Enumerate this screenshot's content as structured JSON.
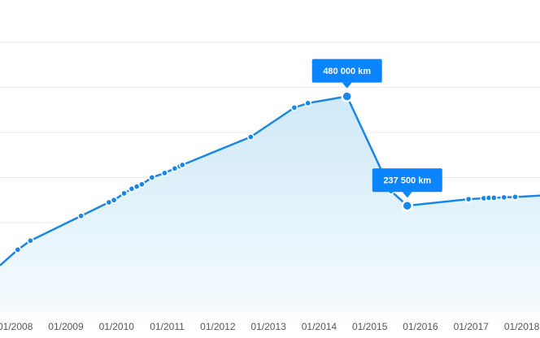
{
  "chart_data": {
    "type": "area",
    "title": "",
    "xlabel": "",
    "ylabel": "",
    "grid": true,
    "legend": "none",
    "colors": {
      "line": "#1a86e6",
      "area_top": "#cfe9f8",
      "area_bottom": "#f5fbfe",
      "callout": "#0a84ff"
    },
    "xlim": [
      2007.7,
      2018.36
    ],
    "ylim": [
      0,
      600000
    ],
    "y_gridlines": [
      100000,
      200000,
      300000,
      400000,
      500000,
      600000
    ],
    "x_ticks": [
      {
        "value": 2008,
        "label": "01/2008"
      },
      {
        "value": 2009,
        "label": "01/2009"
      },
      {
        "value": 2010,
        "label": "01/2010"
      },
      {
        "value": 2011,
        "label": "01/2011"
      },
      {
        "value": 2012,
        "label": "01/2012"
      },
      {
        "value": 2013,
        "label": "01/2013"
      },
      {
        "value": 2014,
        "label": "01/2014"
      },
      {
        "value": 2015,
        "label": "01/2015"
      },
      {
        "value": 2016,
        "label": "01/2016"
      },
      {
        "value": 2017,
        "label": "01/2017"
      },
      {
        "value": 2018,
        "label": "01/2018"
      }
    ],
    "series": [
      {
        "x": [
          2007.7,
          2008.05,
          2008.3,
          2009.3,
          2009.85,
          2009.95,
          2010.15,
          2010.3,
          2010.4,
          2010.5,
          2010.7,
          2010.95,
          2011.15,
          2011.25,
          2011.3,
          2012.65,
          2013.51,
          2013.78,
          2014.55,
          2015.42,
          2015.74,
          2016.95,
          2017.25,
          2017.35,
          2017.45,
          2017.65,
          2017.87,
          2018.36
        ],
        "y": [
          105000,
          140000,
          160000,
          215000,
          245000,
          250000,
          265000,
          275000,
          280000,
          285000,
          300000,
          310000,
          320000,
          325000,
          328000,
          390000,
          455000,
          465000,
          480000,
          270000,
          237500,
          252000,
          254000,
          255000,
          255000,
          256000,
          257000,
          260000
        ]
      }
    ],
    "annotations": [
      {
        "x": 2014.55,
        "y": 480000,
        "label": "480 000 km"
      },
      {
        "x": 2015.74,
        "y": 237500,
        "label": "237 500 km"
      }
    ]
  }
}
